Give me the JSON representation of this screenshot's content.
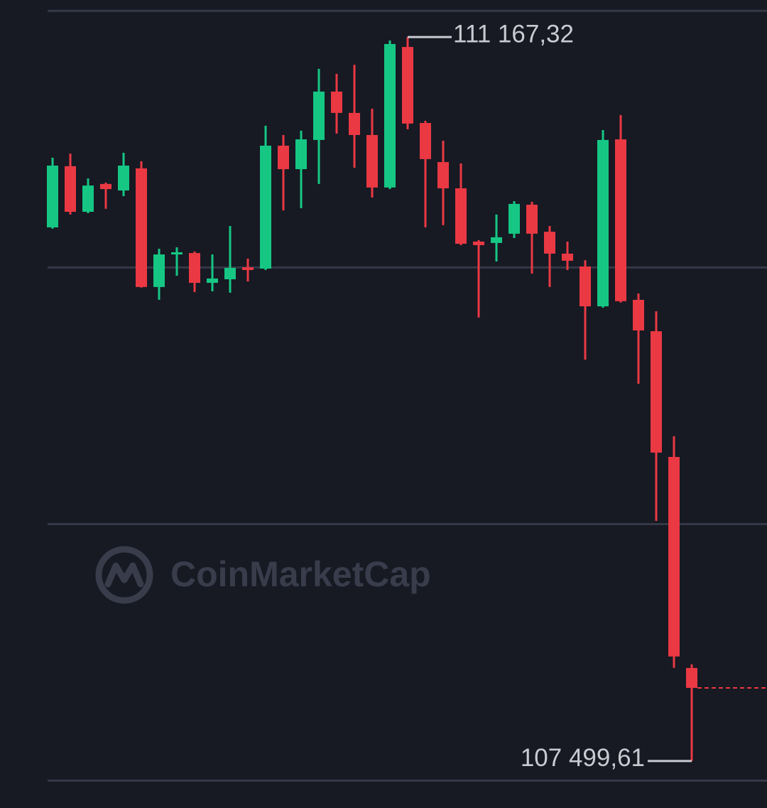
{
  "chart_data": {
    "type": "candlestick",
    "up_color": "#16c784",
    "down_color": "#ea3943",
    "grid": true,
    "last_price_line": true,
    "ylim": [
      107261.5,
      111355
    ],
    "yticks": [
      107400,
      108700,
      110000,
      111300
    ],
    "watermark": "CoinMarketCap",
    "open": [
      110203,
      110513,
      110282,
      110423,
      110390,
      110502,
      109901,
      110066,
      110073,
      109922,
      109940,
      110001,
      109994,
      110617,
      110498,
      110646,
      110891,
      110783,
      110671,
      110405,
      111117,
      110732,
      110534,
      110401,
      110131,
      110124,
      110171,
      110318,
      110181,
      110070,
      110005,
      109803,
      110649,
      109836,
      109677,
      109040,
      107971
    ],
    "high": [
      110556,
      110577,
      110451,
      110430,
      110581,
      110538,
      110095,
      110102,
      110081,
      110066,
      110210,
      110045,
      110718,
      110671,
      110693,
      111006,
      110981,
      111027,
      110804,
      111150,
      111167.32,
      110743,
      110642,
      110527,
      110138,
      110268,
      110336,
      110333,
      110210,
      110131,
      110037,
      110696,
      110772,
      109868,
      109778,
      109145,
      107989
    ],
    "low": [
      110196,
      110268,
      110275,
      110297,
      110361,
      109898,
      109836,
      109958,
      109875,
      109879,
      109872,
      109929,
      109987,
      110289,
      110300,
      110423,
      110678,
      110505,
      110354,
      110397,
      110700,
      110203,
      110214,
      110113,
      109746,
      110030,
      110149,
      109969,
      109901,
      109987,
      109533,
      109796,
      109822,
      109411,
      108716,
      107971,
      107499.61
    ],
    "close": [
      110516,
      110282,
      110415,
      110397,
      110516,
      109901,
      110066,
      110077,
      109922,
      109944,
      109998,
      109987,
      110617,
      110498,
      110649,
      110891,
      110783,
      110671,
      110405,
      111132,
      110729,
      110549,
      110401,
      110120,
      110113,
      110153,
      110322,
      110171,
      110070,
      110034,
      109803,
      110646,
      109829,
      109681,
      109062,
      108029,
      107870
    ],
    "annotations": [
      {
        "value": 111167.32,
        "label": "111 167,32"
      },
      {
        "value": 107499.61,
        "label": "107 499,61"
      }
    ]
  }
}
